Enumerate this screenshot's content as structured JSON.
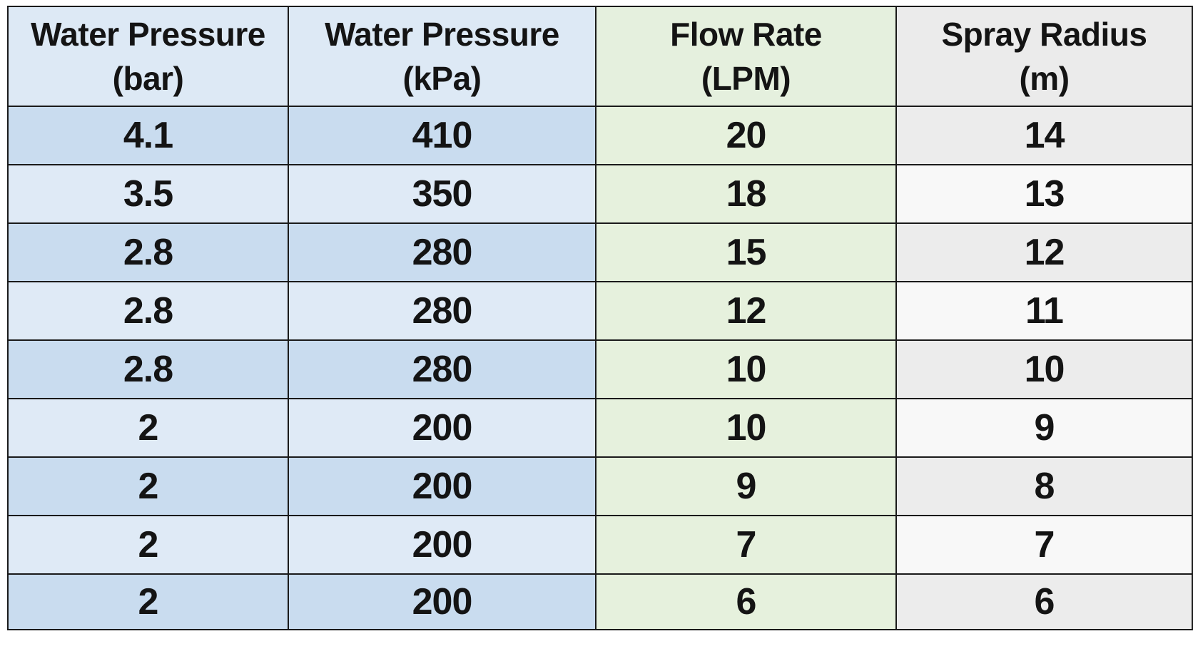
{
  "colors": {
    "pressure_header": "#dde9f5",
    "pressure_dark": "#c9dcef",
    "pressure_light": "#dfeaf6",
    "flow_header": "#e5f0de",
    "flow_body": "#e6f1dd",
    "radius_header": "#ebebeb",
    "radius_dark": "#ececec",
    "radius_light": "#f8f8f8",
    "border": "#1a1a1a",
    "text": "#141414"
  },
  "table": {
    "headers": [
      {
        "line1": "Water Pressure",
        "line2": "(bar)"
      },
      {
        "line1": "Water Pressure",
        "line2": "(kPa)"
      },
      {
        "line1": "Flow Rate",
        "line2": "(LPM)"
      },
      {
        "line1": "Spray Radius",
        "line2": "(m)"
      }
    ],
    "rows": [
      [
        "4.1",
        "410",
        "20",
        "14"
      ],
      [
        "3.5",
        "350",
        "18",
        "13"
      ],
      [
        "2.8",
        "280",
        "15",
        "12"
      ],
      [
        "2.8",
        "280",
        "12",
        "11"
      ],
      [
        "2.8",
        "280",
        "10",
        "10"
      ],
      [
        "2",
        "200",
        "10",
        "9"
      ],
      [
        "2",
        "200",
        "9",
        "8"
      ],
      [
        "2",
        "200",
        "7",
        "7"
      ],
      [
        "2",
        "200",
        "6",
        "6"
      ]
    ]
  }
}
